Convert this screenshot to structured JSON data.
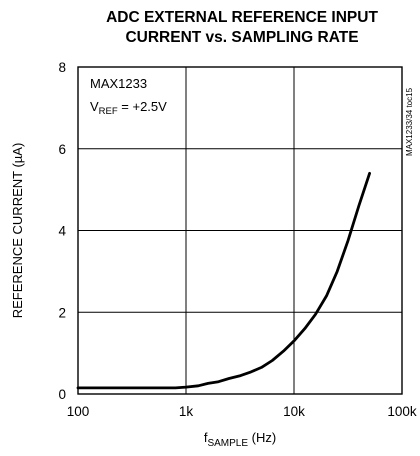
{
  "chart_data": {
    "type": "line",
    "title_lines": [
      "ADC EXTERNAL REFERENCE INPUT",
      "CURRENT vs. SAMPLING RATE"
    ],
    "xlabel": {
      "prefix": "f",
      "subscript": "SAMPLE",
      "suffix": " (Hz)"
    },
    "ylabel": "REFERENCE CURRENT (µA)",
    "x_scale": "log",
    "xlim": [
      100,
      100000
    ],
    "ylim": [
      0,
      8
    ],
    "x_ticks": [
      {
        "value": 100,
        "label": "100"
      },
      {
        "value": 1000,
        "label": "1k"
      },
      {
        "value": 10000,
        "label": "10k"
      },
      {
        "value": 100000,
        "label": "100k"
      }
    ],
    "y_ticks": [
      {
        "value": 0,
        "label": "0"
      },
      {
        "value": 2,
        "label": "2"
      },
      {
        "value": 4,
        "label": "4"
      },
      {
        "value": 6,
        "label": "6"
      },
      {
        "value": 8,
        "label": "8"
      }
    ],
    "grid": true,
    "annotations": {
      "device": "MAX1233",
      "vref_prefix": "V",
      "vref_subscript": "REF",
      "vref_suffix": " = +2.5V"
    },
    "side_label": "MAX1233/34 toc15",
    "series": [
      {
        "color": "#000000",
        "x": [
          100,
          200,
          500,
          800,
          1000,
          1300,
          1600,
          2000,
          2500,
          3200,
          4000,
          5000,
          6300,
          8000,
          10000,
          12600,
          15800,
          20000,
          25100,
          31600,
          39800,
          50100
        ],
        "y": [
          0.15,
          0.15,
          0.15,
          0.15,
          0.17,
          0.2,
          0.26,
          0.3,
          0.38,
          0.45,
          0.54,
          0.65,
          0.82,
          1.05,
          1.3,
          1.6,
          1.95,
          2.4,
          3.0,
          3.75,
          4.6,
          5.4
        ]
      }
    ]
  }
}
